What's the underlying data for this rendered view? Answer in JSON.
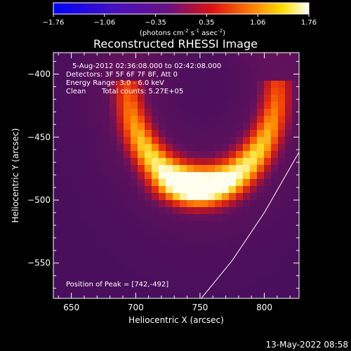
{
  "chart_data": {
    "type": "heatmap",
    "title": "Reconstructed RHESSI Image",
    "xlabel": "Heliocentric X (arcsec)",
    "ylabel": "Heliocentric Y (arcsec)",
    "xlim": [
      636,
      827
    ],
    "ylim": [
      -578,
      -383
    ],
    "xticks": [
      650,
      700,
      750,
      800
    ],
    "yticks": [
      -400,
      -450,
      -500,
      -550
    ],
    "colorbar": {
      "colormap": "hot-fire (blue-purple-red-orange-yellow-white)",
      "range": [
        -1.76,
        1.76
      ],
      "ticks": [
        "-1.76",
        "-1.06",
        "-0.35",
        "0.35",
        "1.06",
        "1.76"
      ],
      "unit_parts": [
        "(photons cm",
        "-2",
        " s",
        "-1",
        " asec",
        "-2",
        ")"
      ]
    },
    "annotations": {
      "time_range": "5-Aug-2012 02:36:08.000 to 02:42:08.000",
      "detectors": "Detectors: 3F 5F 6F 7F 8F, Att 0",
      "energy": "Energy Range: 3.0 - 6.0 keV",
      "clean": "Clean",
      "counts": "Total counts: 5.27E+05",
      "peak": "Position of Peak = [742,-492]"
    },
    "peak": [
      742,
      -492
    ],
    "source_arc": {
      "center": [
        752,
        -408
      ],
      "radius_x": 58,
      "radius_y": 80,
      "start_deg": 145,
      "end_deg": 35,
      "peak_value": 1.76,
      "background_value": 0.0
    },
    "solar_limb": [
      [
        827,
        -462
      ],
      [
        800,
        -510
      ],
      [
        775,
        -548
      ],
      [
        751,
        -578
      ]
    ],
    "timestamp": "13-May-2022 08:58"
  }
}
